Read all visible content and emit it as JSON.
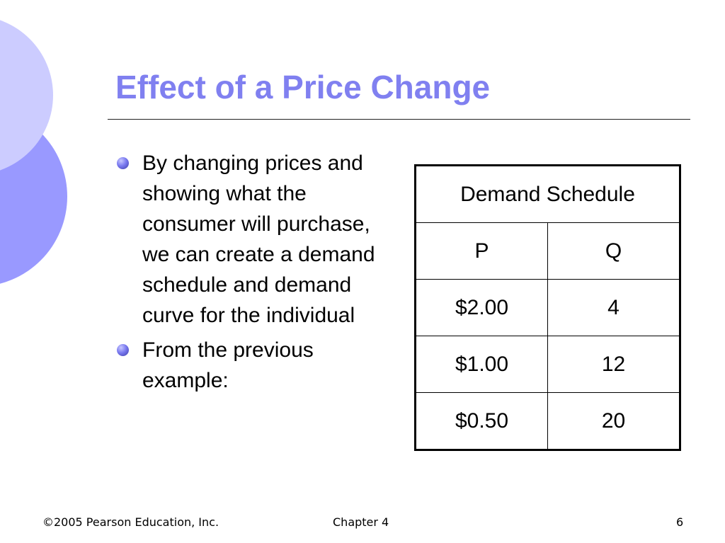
{
  "slide": {
    "title": "Effect of a Price Change",
    "bullets": [
      "By changing prices and showing what the consumer will purchase, we can create a demand schedule and demand curve for the individual",
      "From the previous example:"
    ],
    "accent_color": "#8080f0",
    "bullet_color": "#6a6ae8"
  },
  "table": {
    "caption": "Demand Schedule",
    "headers": [
      "P",
      "Q"
    ],
    "rows": [
      [
        "$2.00",
        "4"
      ],
      [
        "$1.00",
        "12"
      ],
      [
        "$0.50",
        "20"
      ]
    ]
  },
  "footer": {
    "copyright": "©2005 Pearson Education, Inc.",
    "chapter": "Chapter 4",
    "page_number": "6"
  }
}
